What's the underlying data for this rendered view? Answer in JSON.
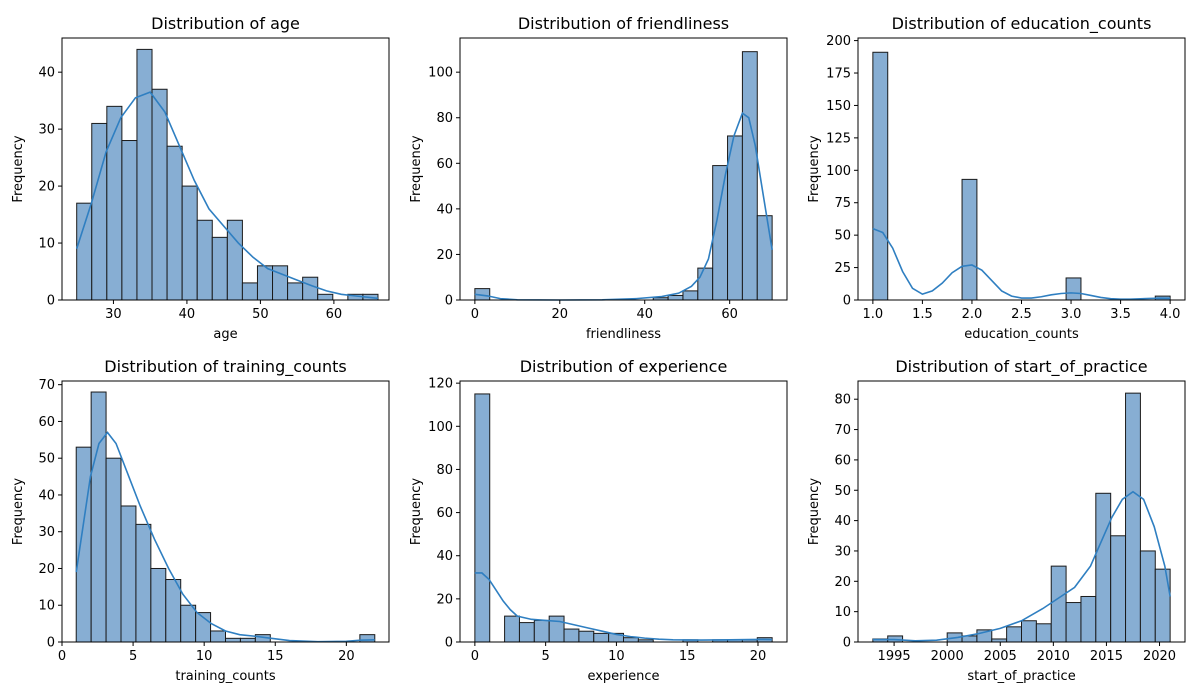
{
  "chart_data": [
    {
      "type": "histogram",
      "title": "Distribution of age",
      "xlabel": "age",
      "ylabel": "Frequency",
      "xlim": [
        23,
        67.5
      ],
      "ylim": [
        0,
        46
      ],
      "xticks": [
        30,
        40,
        50,
        60
      ],
      "yticks": [
        0,
        10,
        20,
        30,
        40
      ],
      "bins": [
        {
          "x0": 25,
          "x1": 27.05,
          "count": 17
        },
        {
          "x0": 27.05,
          "x1": 29.1,
          "count": 31
        },
        {
          "x0": 29.1,
          "x1": 31.15,
          "count": 34
        },
        {
          "x0": 31.15,
          "x1": 33.2,
          "count": 28
        },
        {
          "x0": 33.2,
          "x1": 35.25,
          "count": 44
        },
        {
          "x0": 35.25,
          "x1": 37.3,
          "count": 37
        },
        {
          "x0": 37.3,
          "x1": 39.35,
          "count": 27
        },
        {
          "x0": 39.35,
          "x1": 41.4,
          "count": 20
        },
        {
          "x0": 41.4,
          "x1": 43.45,
          "count": 14
        },
        {
          "x0": 43.45,
          "x1": 45.5,
          "count": 11
        },
        {
          "x0": 45.5,
          "x1": 47.55,
          "count": 14
        },
        {
          "x0": 47.55,
          "x1": 49.6,
          "count": 3
        },
        {
          "x0": 49.6,
          "x1": 51.65,
          "count": 6
        },
        {
          "x0": 51.65,
          "x1": 53.7,
          "count": 6
        },
        {
          "x0": 53.7,
          "x1": 55.75,
          "count": 3
        },
        {
          "x0": 55.75,
          "x1": 57.8,
          "count": 4
        },
        {
          "x0": 57.8,
          "x1": 59.85,
          "count": 1
        },
        {
          "x0": 59.85,
          "x1": 61.9,
          "count": 0
        },
        {
          "x0": 61.9,
          "x1": 63.95,
          "count": 1
        },
        {
          "x0": 63.95,
          "x1": 66,
          "count": 1
        }
      ],
      "kde": [
        [
          25,
          9
        ],
        [
          27,
          17
        ],
        [
          29,
          26
        ],
        [
          31,
          32
        ],
        [
          33,
          35.5
        ],
        [
          35,
          36.5
        ],
        [
          37,
          33
        ],
        [
          39,
          27
        ],
        [
          41,
          21
        ],
        [
          43,
          16
        ],
        [
          45,
          13
        ],
        [
          47,
          10
        ],
        [
          49,
          7.5
        ],
        [
          51,
          5.5
        ],
        [
          53,
          4.5
        ],
        [
          55,
          3.5
        ],
        [
          57,
          2.5
        ],
        [
          59,
          1.6
        ],
        [
          61,
          1
        ],
        [
          63,
          0.7
        ],
        [
          66,
          0.3
        ]
      ]
    },
    {
      "type": "histogram",
      "title": "Distribution of friendliness",
      "xlabel": "friendliness",
      "ylabel": "Frequency",
      "xlim": [
        -3.5,
        73.5
      ],
      "ylim": [
        0,
        115
      ],
      "xticks": [
        0,
        20,
        40,
        60
      ],
      "yticks": [
        0,
        20,
        40,
        60,
        80,
        100
      ],
      "bins": [
        {
          "x0": 0,
          "x1": 3.5,
          "count": 5
        },
        {
          "x0": 3.5,
          "x1": 7,
          "count": 0
        },
        {
          "x0": 7,
          "x1": 10.5,
          "count": 0
        },
        {
          "x0": 10.5,
          "x1": 14,
          "count": 0
        },
        {
          "x0": 14,
          "x1": 17.5,
          "count": 0
        },
        {
          "x0": 17.5,
          "x1": 21,
          "count": 0
        },
        {
          "x0": 21,
          "x1": 24.5,
          "count": 0
        },
        {
          "x0": 24.5,
          "x1": 28,
          "count": 0
        },
        {
          "x0": 28,
          "x1": 31.5,
          "count": 0
        },
        {
          "x0": 31.5,
          "x1": 35,
          "count": 0
        },
        {
          "x0": 35,
          "x1": 38.5,
          "count": 0
        },
        {
          "x0": 38.5,
          "x1": 42,
          "count": 0
        },
        {
          "x0": 42,
          "x1": 45.5,
          "count": 1
        },
        {
          "x0": 45.5,
          "x1": 49,
          "count": 2
        },
        {
          "x0": 49,
          "x1": 52.5,
          "count": 4
        },
        {
          "x0": 52.5,
          "x1": 56,
          "count": 14
        },
        {
          "x0": 56,
          "x1": 59.5,
          "count": 59
        },
        {
          "x0": 59.5,
          "x1": 63,
          "count": 72
        },
        {
          "x0": 63,
          "x1": 66.5,
          "count": 109
        },
        {
          "x0": 66.5,
          "x1": 70,
          "count": 37
        }
      ],
      "kde": [
        [
          0,
          2.5
        ],
        [
          3,
          1.8
        ],
        [
          6,
          0.6
        ],
        [
          10,
          0.1
        ],
        [
          20,
          0
        ],
        [
          30,
          0.1
        ],
        [
          38,
          0.6
        ],
        [
          44,
          1.5
        ],
        [
          48,
          3
        ],
        [
          51,
          6
        ],
        [
          53,
          10
        ],
        [
          55,
          18
        ],
        [
          57,
          35
        ],
        [
          59,
          55
        ],
        [
          61,
          72
        ],
        [
          63,
          82
        ],
        [
          64.5,
          80
        ],
        [
          66,
          68
        ],
        [
          68,
          45
        ],
        [
          70,
          22
        ]
      ]
    },
    {
      "type": "histogram",
      "title": "Distribution of education_counts",
      "xlabel": "education_counts",
      "ylabel": "Frequency",
      "xlim": [
        0.85,
        4.15
      ],
      "ylim": [
        0,
        202
      ],
      "xticks": [
        1.0,
        1.5,
        2.0,
        2.5,
        3.0,
        3.5,
        4.0
      ],
      "yticks": [
        0,
        25,
        50,
        75,
        100,
        125,
        150,
        175,
        200
      ],
      "bins": [
        {
          "x0": 1.0,
          "x1": 1.15,
          "count": 191
        },
        {
          "x0": 1.9,
          "x1": 2.05,
          "count": 93
        },
        {
          "x0": 2.95,
          "x1": 3.1,
          "count": 17
        },
        {
          "x0": 3.85,
          "x1": 4.0,
          "count": 3
        }
      ],
      "kde": [
        [
          1.0,
          55
        ],
        [
          1.1,
          52
        ],
        [
          1.2,
          40
        ],
        [
          1.3,
          22
        ],
        [
          1.4,
          9
        ],
        [
          1.5,
          4.5
        ],
        [
          1.6,
          7
        ],
        [
          1.7,
          13
        ],
        [
          1.8,
          21
        ],
        [
          1.9,
          26
        ],
        [
          2.0,
          27
        ],
        [
          2.1,
          23
        ],
        [
          2.2,
          15
        ],
        [
          2.3,
          7
        ],
        [
          2.4,
          3
        ],
        [
          2.5,
          1.5
        ],
        [
          2.6,
          1.5
        ],
        [
          2.7,
          2.5
        ],
        [
          2.8,
          4
        ],
        [
          2.9,
          5
        ],
        [
          3.0,
          5.5
        ],
        [
          3.1,
          5
        ],
        [
          3.2,
          3.5
        ],
        [
          3.3,
          2
        ],
        [
          3.4,
          1
        ],
        [
          3.5,
          0.6
        ],
        [
          3.6,
          0.6
        ],
        [
          3.7,
          0.9
        ],
        [
          3.8,
          1.2
        ],
        [
          3.9,
          1.4
        ],
        [
          4.0,
          1.3
        ]
      ]
    },
    {
      "type": "histogram",
      "title": "Distribution of training_counts",
      "xlabel": "training_counts",
      "ylabel": "Frequency",
      "xlim": [
        0,
        23
      ],
      "ylim": [
        0,
        71
      ],
      "xticks": [
        0,
        5,
        10,
        15,
        20
      ],
      "yticks": [
        0,
        10,
        20,
        30,
        40,
        50,
        60,
        70
      ],
      "bins": [
        {
          "x0": 1,
          "x1": 2.05,
          "count": 53
        },
        {
          "x0": 2.05,
          "x1": 3.1,
          "count": 68
        },
        {
          "x0": 3.1,
          "x1": 4.15,
          "count": 50
        },
        {
          "x0": 4.15,
          "x1": 5.2,
          "count": 37
        },
        {
          "x0": 5.2,
          "x1": 6.25,
          "count": 32
        },
        {
          "x0": 6.25,
          "x1": 7.3,
          "count": 20
        },
        {
          "x0": 7.3,
          "x1": 8.35,
          "count": 17
        },
        {
          "x0": 8.35,
          "x1": 9.4,
          "count": 10
        },
        {
          "x0": 9.4,
          "x1": 10.45,
          "count": 8
        },
        {
          "x0": 10.45,
          "x1": 11.5,
          "count": 3
        },
        {
          "x0": 11.5,
          "x1": 12.55,
          "count": 1
        },
        {
          "x0": 12.55,
          "x1": 13.6,
          "count": 1
        },
        {
          "x0": 13.6,
          "x1": 14.65,
          "count": 2
        },
        {
          "x0": 14.65,
          "x1": 15.7,
          "count": 0
        },
        {
          "x0": 15.7,
          "x1": 16.75,
          "count": 0
        },
        {
          "x0": 16.75,
          "x1": 17.8,
          "count": 0
        },
        {
          "x0": 17.8,
          "x1": 18.85,
          "count": 0
        },
        {
          "x0": 18.85,
          "x1": 19.9,
          "count": 0
        },
        {
          "x0": 19.9,
          "x1": 20.95,
          "count": 0
        },
        {
          "x0": 20.95,
          "x1": 22,
          "count": 2
        }
      ],
      "kde": [
        [
          1,
          19
        ],
        [
          1.5,
          32
        ],
        [
          2,
          45
        ],
        [
          2.6,
          54
        ],
        [
          3.2,
          57
        ],
        [
          3.8,
          54
        ],
        [
          4.5,
          47
        ],
        [
          5.5,
          37
        ],
        [
          6.5,
          28
        ],
        [
          7.5,
          20
        ],
        [
          8.5,
          13
        ],
        [
          9.5,
          8
        ],
        [
          10.5,
          5
        ],
        [
          11.5,
          3
        ],
        [
          12.5,
          2
        ],
        [
          13.5,
          1.6
        ],
        [
          14.5,
          1.1
        ],
        [
          16,
          0.4
        ],
        [
          18,
          0.1
        ],
        [
          20,
          0.2
        ],
        [
          21,
          0.5
        ],
        [
          22,
          0.6
        ]
      ]
    },
    {
      "type": "histogram",
      "title": "Distribution of experience",
      "xlabel": "experience",
      "ylabel": "Frequency",
      "xlim": [
        -1.05,
        22.05
      ],
      "ylim": [
        0,
        121
      ],
      "xticks": [
        0,
        5,
        10,
        15,
        20
      ],
      "yticks": [
        0,
        20,
        40,
        60,
        80,
        100,
        120
      ],
      "bins": [
        {
          "x0": 0,
          "x1": 1.05,
          "count": 115
        },
        {
          "x0": 1.05,
          "x1": 2.1,
          "count": 0
        },
        {
          "x0": 2.1,
          "x1": 3.15,
          "count": 12
        },
        {
          "x0": 3.15,
          "x1": 4.2,
          "count": 9
        },
        {
          "x0": 4.2,
          "x1": 5.25,
          "count": 10
        },
        {
          "x0": 5.25,
          "x1": 6.3,
          "count": 12
        },
        {
          "x0": 6.3,
          "x1": 7.35,
          "count": 6
        },
        {
          "x0": 7.35,
          "x1": 8.4,
          "count": 5
        },
        {
          "x0": 8.4,
          "x1": 9.45,
          "count": 4
        },
        {
          "x0": 9.45,
          "x1": 10.5,
          "count": 4
        },
        {
          "x0": 10.5,
          "x1": 11.55,
          "count": 2
        },
        {
          "x0": 11.55,
          "x1": 12.6,
          "count": 1
        },
        {
          "x0": 12.6,
          "x1": 13.65,
          "count": 0
        },
        {
          "x0": 13.65,
          "x1": 14.7,
          "count": 0
        },
        {
          "x0": 14.7,
          "x1": 15.75,
          "count": 1
        },
        {
          "x0": 15.75,
          "x1": 16.8,
          "count": 0
        },
        {
          "x0": 16.8,
          "x1": 17.85,
          "count": 1
        },
        {
          "x0": 17.85,
          "x1": 18.9,
          "count": 1
        },
        {
          "x0": 18.9,
          "x1": 19.95,
          "count": 1
        },
        {
          "x0": 19.95,
          "x1": 21,
          "count": 2
        }
      ],
      "kde": [
        [
          0,
          32
        ],
        [
          0.5,
          32
        ],
        [
          1,
          29
        ],
        [
          1.5,
          24
        ],
        [
          2,
          19
        ],
        [
          2.5,
          15
        ],
        [
          3,
          12
        ],
        [
          4,
          10.5
        ],
        [
          5,
          10
        ],
        [
          6,
          9.5
        ],
        [
          7,
          8
        ],
        [
          8,
          6.5
        ],
        [
          9,
          5
        ],
        [
          10,
          3.5
        ],
        [
          11,
          2.5
        ],
        [
          12,
          1.8
        ],
        [
          13,
          1.3
        ],
        [
          14,
          1
        ],
        [
          16,
          0.9
        ],
        [
          18,
          1
        ],
        [
          20,
          1.2
        ],
        [
          21,
          1.1
        ]
      ]
    },
    {
      "type": "histogram",
      "title": "Distribution of start_of_practice",
      "xlabel": "start_of_practice",
      "ylabel": "Frequency",
      "xlim": [
        1991.6,
        2022.4
      ],
      "ylim": [
        0,
        86
      ],
      "xticks": [
        1995,
        2000,
        2005,
        2010,
        2015,
        2020
      ],
      "yticks": [
        0,
        10,
        20,
        30,
        40,
        50,
        60,
        70,
        80
      ],
      "bins": [
        {
          "x0": 1993,
          "x1": 1994.4,
          "count": 1
        },
        {
          "x0": 1994.4,
          "x1": 1995.8,
          "count": 2
        },
        {
          "x0": 1995.8,
          "x1": 1997.2,
          "count": 0
        },
        {
          "x0": 1997.2,
          "x1": 1998.6,
          "count": 0
        },
        {
          "x0": 1998.6,
          "x1": 2000,
          "count": 0
        },
        {
          "x0": 2000,
          "x1": 2001.4,
          "count": 3
        },
        {
          "x0": 2001.4,
          "x1": 2002.8,
          "count": 2
        },
        {
          "x0": 2002.8,
          "x1": 2004.2,
          "count": 4
        },
        {
          "x0": 2004.2,
          "x1": 2005.6,
          "count": 1
        },
        {
          "x0": 2005.6,
          "x1": 2007,
          "count": 5
        },
        {
          "x0": 2007,
          "x1": 2008.4,
          "count": 7
        },
        {
          "x0": 2008.4,
          "x1": 2009.8,
          "count": 6
        },
        {
          "x0": 2009.8,
          "x1": 2011.2,
          "count": 25
        },
        {
          "x0": 2011.2,
          "x1": 2012.6,
          "count": 13
        },
        {
          "x0": 2012.6,
          "x1": 2014,
          "count": 15
        },
        {
          "x0": 2014,
          "x1": 2015.4,
          "count": 49
        },
        {
          "x0": 2015.4,
          "x1": 2016.8,
          "count": 35
        },
        {
          "x0": 2016.8,
          "x1": 2018.2,
          "count": 82
        },
        {
          "x0": 2018.2,
          "x1": 2019.6,
          "count": 30
        },
        {
          "x0": 2019.6,
          "x1": 2021,
          "count": 24
        }
      ],
      "kde": [
        [
          1993,
          0.8
        ],
        [
          1995,
          0.8
        ],
        [
          1997,
          0.4
        ],
        [
          1999,
          0.6
        ],
        [
          2001,
          1.5
        ],
        [
          2003,
          2.8
        ],
        [
          2005,
          4.5
        ],
        [
          2007,
          7
        ],
        [
          2009,
          11
        ],
        [
          2010.5,
          14.5
        ],
        [
          2012,
          18
        ],
        [
          2013.5,
          25
        ],
        [
          2014.5,
          33
        ],
        [
          2015.5,
          41
        ],
        [
          2016.5,
          47
        ],
        [
          2017.5,
          49.5
        ],
        [
          2018.5,
          47
        ],
        [
          2019.5,
          38
        ],
        [
          2020.5,
          25
        ],
        [
          2021,
          15
        ]
      ]
    }
  ]
}
